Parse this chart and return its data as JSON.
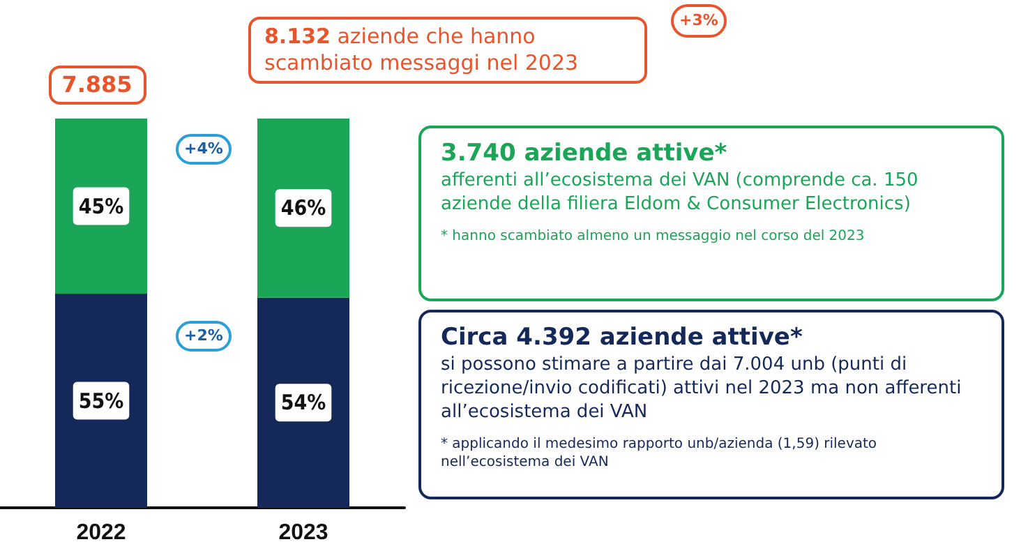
{
  "chart_data": {
    "type": "bar",
    "categories": [
      "2022",
      "2023"
    ],
    "stacked": true,
    "ylim": [
      0,
      100
    ],
    "tick_labels": "x",
    "series": [
      {
        "color": "#15285a",
        "values": [
          55,
          54
        ],
        "value_labels": [
          "55%",
          "54%"
        ]
      },
      {
        "color": "#1aa557",
        "values": [
          45,
          46
        ],
        "value_labels": [
          "45%",
          "46%"
        ]
      }
    ],
    "annotations": [
      {
        "text": "7.885",
        "x": "2022",
        "y": 100
      },
      {
        "text": "8.132 aziende che hanno scambiato messaggi nel 2023",
        "x": "2023",
        "y": 100
      },
      "+3%",
      "+4%",
      "+2%",
      "3.740 aziende attive*",
      "afferenti all’ecosistema dei VAN (comprende ca. 150 aziende della filiera Eldom & Consumer Electronics)",
      "* hanno scambiato almeno un messaggio nel corso del 2023",
      "Circa 4.392 aziende attive*",
      "si possono stimare a partire dai 7.004 unb (punti di ricezione/invio codificati) attivi nel 2023 ma non afferenti all’ecosistema dei VAN",
      "* applicando il medesimo rapporto unb/azienda (1,59) rilevato nell’ecosistema dei VAN"
    ]
  }
}
